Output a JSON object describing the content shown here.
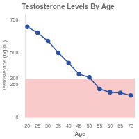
{
  "chart_data": {
    "type": "line",
    "title": "Testosterone Levels By Age",
    "xlabel": "Age",
    "ylabel": "Testosterone (ng/dL)",
    "x": [
      20,
      25,
      30,
      35,
      40,
      45,
      50,
      55,
      60,
      65,
      70
    ],
    "values": [
      700,
      655,
      590,
      500,
      420,
      335,
      310,
      220,
      195,
      190,
      170
    ],
    "color": "#2a52a0",
    "marker": "o",
    "xlim": [
      19,
      72
    ],
    "xticks": [
      20,
      25,
      30,
      35,
      40,
      45,
      50,
      55,
      60,
      65,
      70
    ],
    "ylim": [
      0,
      800
    ],
    "yticks": [
      0,
      250,
      300,
      500,
      750
    ],
    "grid": false,
    "shade": {
      "ylim": [
        0,
        300
      ],
      "color": "#f5b8b8"
    }
  }
}
